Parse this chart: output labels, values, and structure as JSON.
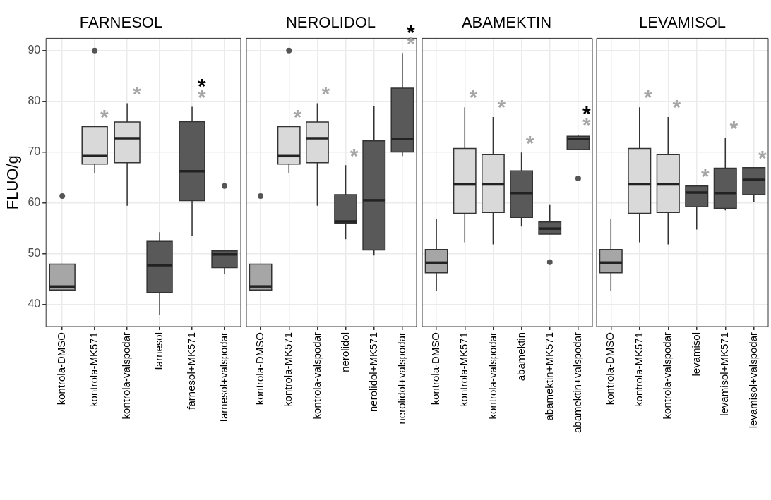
{
  "chart_data": [
    {
      "type": "box",
      "title": "FARNESOL",
      "ylabel": "FLUO/g",
      "categories": [
        "kontrola-DMSO",
        "kontrola-MK571",
        "kontrola-valspodar",
        "farnesol",
        "farnesol+MK571",
        "farnesol+valspodar"
      ],
      "colors": [
        "#a6a6a6",
        "#d9d9d9",
        "#d9d9d9",
        "#595959",
        "#595959",
        "#595959"
      ],
      "boxes": [
        {
          "low": 42.8,
          "q1": 42.8,
          "median": 43.5,
          "q3": 47.9,
          "high": 47.9,
          "outliers": [
            61.3
          ]
        },
        {
          "low": 65.9,
          "q1": 67.6,
          "median": 69.2,
          "q3": 75.0,
          "high": 75.0,
          "outliers": [
            90
          ]
        },
        {
          "low": 59.4,
          "q1": 67.9,
          "median": 72.7,
          "q3": 75.9,
          "high": 79.6
        },
        {
          "low": 37.9,
          "q1": 42.3,
          "median": 47.7,
          "q3": 52.4,
          "high": 54.2
        },
        {
          "low": 53.4,
          "q1": 60.4,
          "median": 66.2,
          "q3": 76.0,
          "high": 78.9
        },
        {
          "low": 45.9,
          "q1": 47.2,
          "median": 49.8,
          "q3": 50.5,
          "high": 50.5,
          "outliers": [
            63.3
          ]
        }
      ],
      "annotations": [
        "*",
        "*",
        "*",
        "*"
      ],
      "ylim": [
        35.6,
        92.4
      ],
      "yticks": [
        40,
        50,
        60,
        70,
        80,
        90
      ],
      "grid": true
    },
    {
      "type": "box",
      "title": "NEROLIDOL",
      "categories": [
        "kontrola-DMSO",
        "kontrola-MK571",
        "kontrola-valspodar",
        "nerolidol",
        "nerolidol+MK571",
        "nerolidol+valspodar"
      ],
      "colors": [
        "#a6a6a6",
        "#d9d9d9",
        "#d9d9d9",
        "#595959",
        "#595959",
        "#595959"
      ],
      "boxes": [
        {
          "low": 42.8,
          "q1": 42.8,
          "median": 43.5,
          "q3": 47.9,
          "high": 47.9,
          "outliers": [
            61.3
          ]
        },
        {
          "low": 65.9,
          "q1": 67.6,
          "median": 69.2,
          "q3": 75.0,
          "high": 75.0,
          "outliers": [
            90
          ]
        },
        {
          "low": 59.4,
          "q1": 67.9,
          "median": 72.7,
          "q3": 75.9,
          "high": 79.6
        },
        {
          "low": 52.8,
          "q1": 56.0,
          "median": 56.3,
          "q3": 61.6,
          "high": 67.4
        },
        {
          "low": 49.6,
          "q1": 50.7,
          "median": 60.5,
          "q3": 72.2,
          "high": 79.0
        },
        {
          "low": 69.2,
          "q1": 70.0,
          "median": 72.6,
          "q3": 82.6,
          "high": 89.5
        }
      ],
      "annotations": [
        "*",
        "*",
        "*",
        "*",
        "*"
      ],
      "ylim": [
        35.6,
        92.4
      ],
      "yticks": [
        40,
        50,
        60,
        70,
        80,
        90
      ],
      "grid": true,
      "tick_labels": "x"
    },
    {
      "type": "box",
      "title": "ABAMEKTIN",
      "categories": [
        "kontrola-DMSO",
        "kontrola-MK571",
        "kontrola-valspodar",
        "abamektin",
        "abamektin+MK571",
        "abamektin+valspodar"
      ],
      "colors": [
        "#a6a6a6",
        "#d9d9d9",
        "#d9d9d9",
        "#595959",
        "#595959",
        "#595959"
      ],
      "boxes": [
        {
          "low": 42.6,
          "q1": 46.2,
          "median": 48.2,
          "q3": 50.8,
          "high": 56.8
        },
        {
          "low": 52.2,
          "q1": 57.9,
          "median": 63.6,
          "q3": 70.7,
          "high": 78.8
        },
        {
          "low": 51.8,
          "q1": 58.1,
          "median": 63.6,
          "q3": 69.5,
          "high": 76.9
        },
        {
          "low": 55.3,
          "q1": 57.1,
          "median": 61.9,
          "q3": 66.3,
          "high": 69.9
        },
        {
          "low": 53.8,
          "q1": 53.8,
          "median": 54.9,
          "q3": 56.2,
          "high": 59.7,
          "outliers": [
            48.3
          ]
        },
        {
          "low": 70.5,
          "q1": 70.5,
          "median": 72.6,
          "q3": 73.1,
          "high": 73.4,
          "outliers": [
            64.8
          ]
        }
      ],
      "annotations": [
        "*",
        "*",
        "*",
        "*",
        "*"
      ],
      "ylim": [
        35.6,
        92.4
      ],
      "yticks": [
        40,
        50,
        60,
        70,
        80,
        90
      ],
      "grid": true,
      "tick_labels": "x"
    },
    {
      "type": "box",
      "title": "LEVAMISOL",
      "categories": [
        "kontrola-DMSO",
        "kontrola-MK571",
        "kontrola-valspodar",
        "levamisol",
        "levamisol+MK571",
        "levamisol+valspodar"
      ],
      "colors": [
        "#a6a6a6",
        "#d9d9d9",
        "#d9d9d9",
        "#595959",
        "#595959",
        "#595959"
      ],
      "boxes": [
        {
          "low": 42.6,
          "q1": 46.2,
          "median": 48.2,
          "q3": 50.8,
          "high": 56.8
        },
        {
          "low": 52.2,
          "q1": 57.9,
          "median": 63.6,
          "q3": 70.7,
          "high": 78.8
        },
        {
          "low": 51.8,
          "q1": 58.1,
          "median": 63.6,
          "q3": 69.5,
          "high": 76.9
        },
        {
          "low": 54.7,
          "q1": 59.2,
          "median": 62.0,
          "q3": 63.3,
          "high": 63.3
        },
        {
          "low": 58.5,
          "q1": 58.9,
          "median": 61.9,
          "q3": 66.8,
          "high": 72.8
        },
        {
          "low": 60.2,
          "q1": 61.6,
          "median": 64.5,
          "q3": 66.9,
          "high": 66.9
        }
      ],
      "annotations": [
        "*",
        "*",
        "*",
        "*",
        "*"
      ],
      "ylim": [
        35.6,
        92.4
      ],
      "yticks": [
        40,
        50,
        60,
        70,
        80,
        90
      ],
      "grid": true,
      "tick_labels": "x"
    }
  ]
}
